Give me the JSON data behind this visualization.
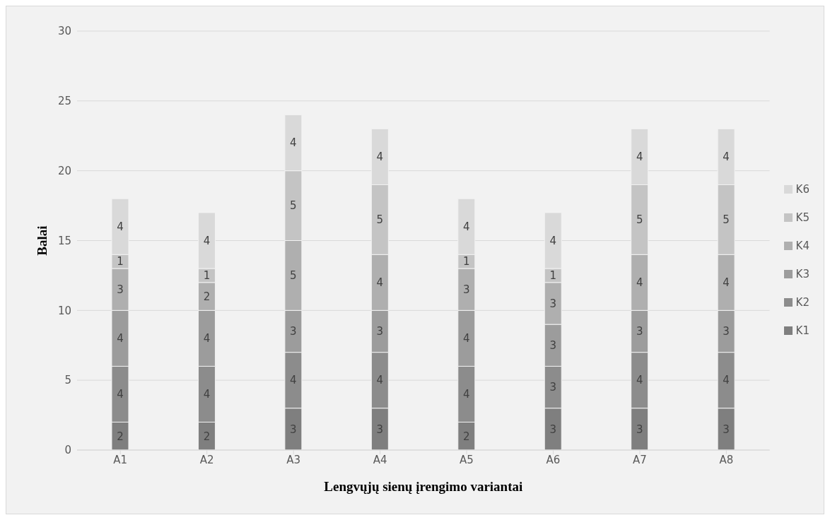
{
  "chart_data": {
    "type": "bar",
    "stacked": true,
    "xlabel": "Lengvųjų sienų įrengimo variantai",
    "ylabel": "Balai",
    "categories": [
      "A1",
      "A2",
      "A3",
      "A4",
      "A5",
      "A6",
      "A7",
      "A8"
    ],
    "series": [
      {
        "name": "K1",
        "color": "#7f7f7f",
        "values": [
          2,
          2,
          3,
          3,
          2,
          3,
          3,
          3
        ]
      },
      {
        "name": "K2",
        "color": "#8c8c8c",
        "values": [
          4,
          4,
          4,
          4,
          4,
          3,
          4,
          4
        ]
      },
      {
        "name": "K3",
        "color": "#9c9c9c",
        "values": [
          4,
          4,
          3,
          3,
          4,
          3,
          3,
          3
        ]
      },
      {
        "name": "K4",
        "color": "#afafaf",
        "values": [
          3,
          2,
          5,
          4,
          3,
          3,
          4,
          4
        ]
      },
      {
        "name": "K5",
        "color": "#c4c4c4",
        "values": [
          1,
          1,
          5,
          5,
          1,
          1,
          5,
          5
        ]
      },
      {
        "name": "K6",
        "color": "#d9d9d9",
        "values": [
          4,
          4,
          4,
          4,
          4,
          4,
          4,
          4
        ]
      }
    ],
    "ylim": [
      0,
      30
    ],
    "yticks": [
      0,
      5,
      10,
      15,
      20,
      25,
      30
    ],
    "grid": "y",
    "legend": "right",
    "data_labels": true
  }
}
